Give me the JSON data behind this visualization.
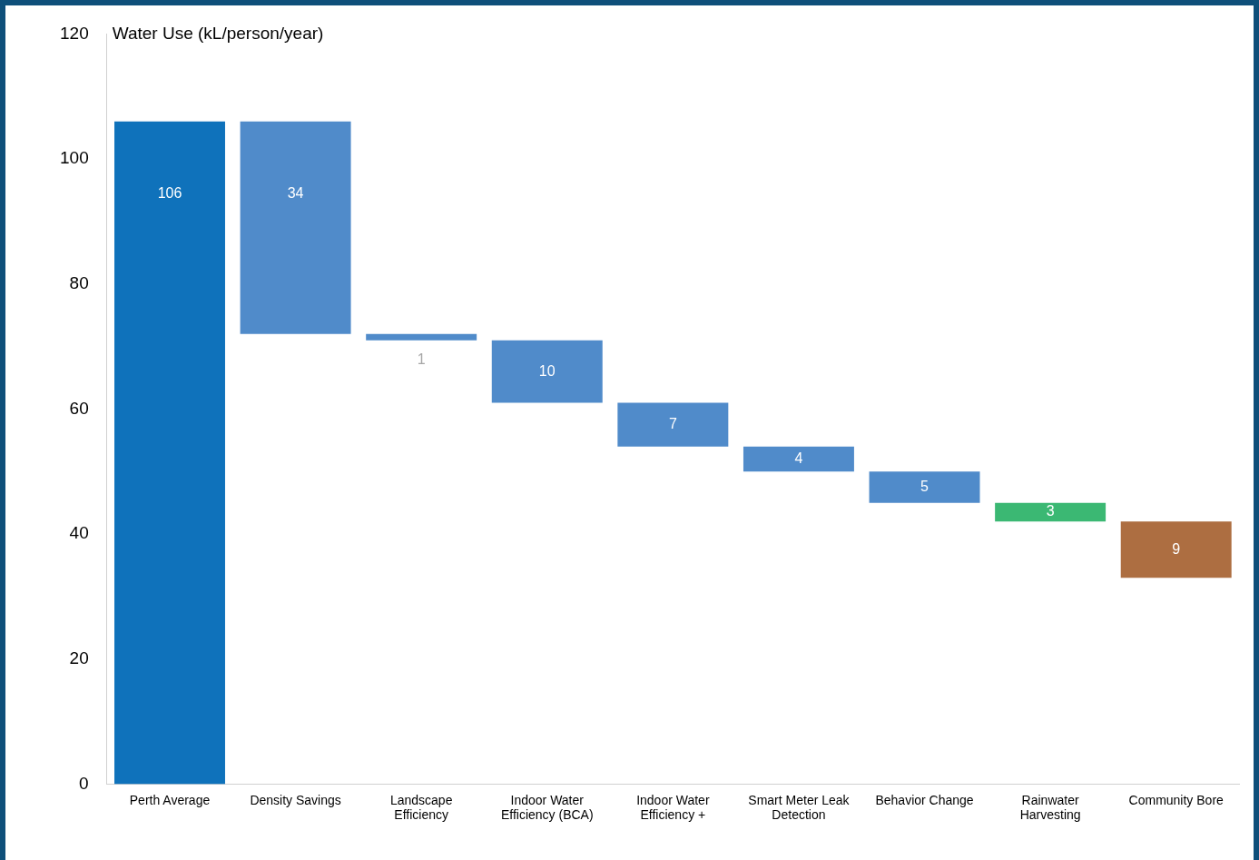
{
  "chart_data": {
    "type": "bar",
    "ylabel": "Water Use (kL/person/year)",
    "categories": [
      "Perth Average",
      "Density Savings",
      "Landscape Efficiency",
      "Indoor Water Efficiency (BCA)",
      "Indoor Water Efficiency +",
      "Smart Meter Leak Detection",
      "Behavior Change",
      "Rainwater Harvesting",
      "Community Bore"
    ],
    "values": [
      106,
      34,
      1,
      10,
      7,
      4,
      5,
      3,
      9
    ],
    "base": [
      0,
      72,
      71,
      61,
      54,
      50,
      45,
      42,
      33
    ],
    "colors": [
      "#0f72bb",
      "#508bca",
      "#508bca",
      "#508bca",
      "#508bca",
      "#508bca",
      "#508bca",
      "#3bb873",
      "#ad6e41"
    ],
    "ylim": [
      0,
      120
    ],
    "yticks": [
      0,
      20,
      40,
      60,
      80,
      100,
      120
    ],
    "data_labels": true,
    "grid": false,
    "legend": false
  }
}
